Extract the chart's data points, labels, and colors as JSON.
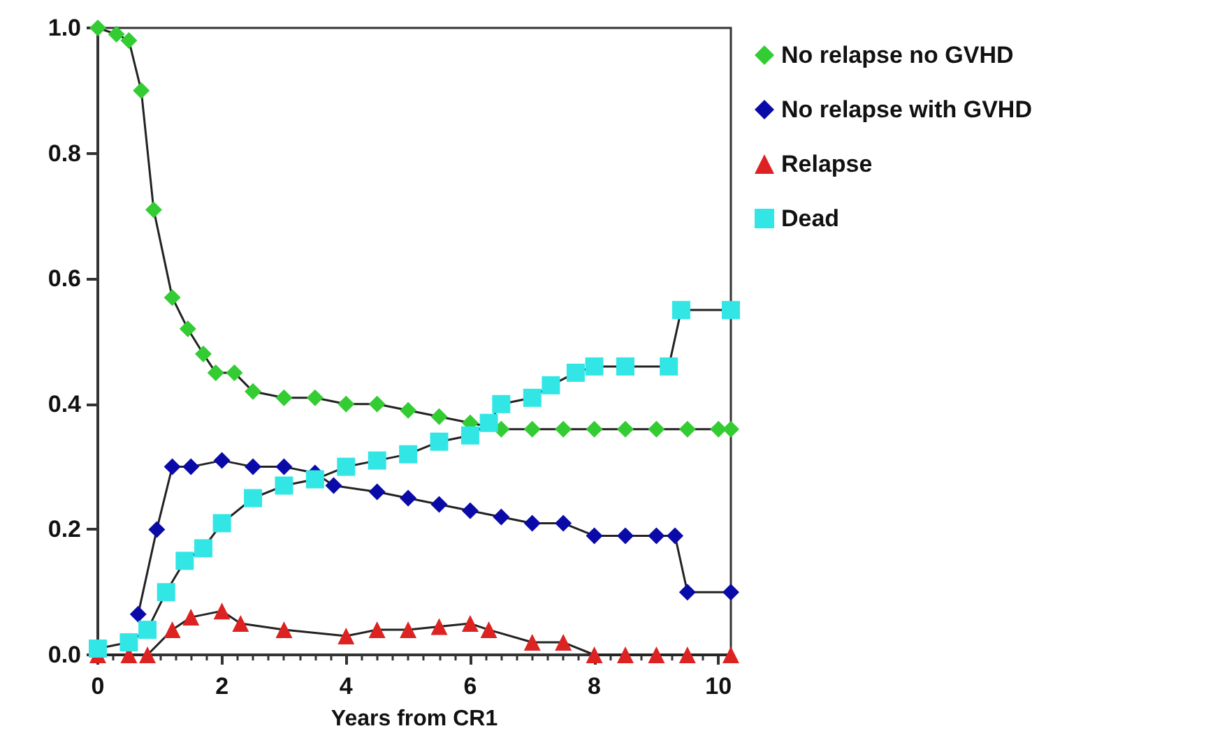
{
  "chart_data": {
    "type": "line",
    "xlabel": "Years from CR1",
    "xlim": [
      0,
      10.2
    ],
    "xticks": [
      0,
      2,
      4,
      6,
      8,
      10
    ],
    "ylim": [
      0,
      1
    ],
    "yticks": [
      {
        "value": 0,
        "label": "0.0"
      },
      {
        "value": 0.2,
        "label": "0.2"
      },
      {
        "value": 0.4,
        "label": "0.4"
      },
      {
        "value": 0.6,
        "label": "0.6"
      },
      {
        "value": 0.8,
        "label": "0.8"
      },
      {
        "value": 1,
        "label": "1.0"
      }
    ],
    "grid": false,
    "legend": "right",
    "line_style": "solid",
    "series": [
      {
        "name": "No relapse no GVHD",
        "color": "#33cc33",
        "marker": "diamond",
        "x": [
          0,
          0.3,
          0.5,
          0.7,
          0.9,
          1.2,
          1.45,
          1.7,
          1.9,
          2.2,
          2.5,
          3,
          3.5,
          4,
          4.5,
          5,
          5.5,
          6,
          6.5,
          7,
          7.5,
          8,
          8.5,
          9,
          9.5,
          10,
          10.2
        ],
        "values": [
          1.0,
          0.99,
          0.98,
          0.9,
          0.71,
          0.57,
          0.52,
          0.48,
          0.45,
          0.45,
          0.42,
          0.41,
          0.41,
          0.4,
          0.4,
          0.39,
          0.38,
          0.37,
          0.36,
          0.36,
          0.36,
          0.36,
          0.36,
          0.36,
          0.36,
          0.36,
          0.36
        ]
      },
      {
        "name": "No relapse with GVHD",
        "color": "#0a0aa8",
        "marker": "diamond",
        "x": [
          0.65,
          0.95,
          1.2,
          1.5,
          2,
          2.5,
          3,
          3.5,
          3.8,
          4.5,
          5,
          5.5,
          6,
          6.5,
          7,
          7.5,
          8,
          8.5,
          9,
          9.3,
          9.5,
          10.2
        ],
        "values": [
          0.065,
          0.2,
          0.3,
          0.3,
          0.31,
          0.3,
          0.3,
          0.29,
          0.27,
          0.26,
          0.25,
          0.24,
          0.23,
          0.22,
          0.21,
          0.21,
          0.19,
          0.19,
          0.19,
          0.19,
          0.1,
          0.1
        ]
      },
      {
        "name": "Relapse",
        "color": "#dd2222",
        "marker": "triangle",
        "x": [
          0,
          0.5,
          0.8,
          1.2,
          1.5,
          2,
          2.3,
          3,
          4,
          4.5,
          5,
          5.5,
          6,
          6.3,
          7,
          7.5,
          8,
          8.5,
          9,
          9.5,
          10.2
        ],
        "values": [
          0,
          0,
          0,
          0.04,
          0.06,
          0.07,
          0.05,
          0.04,
          0.03,
          0.04,
          0.04,
          0.045,
          0.05,
          0.04,
          0.02,
          0.02,
          0,
          0,
          0,
          0,
          0
        ]
      },
      {
        "name": "Dead",
        "color": "#33e6e6",
        "marker": "square",
        "x": [
          0,
          0.5,
          0.8,
          1.1,
          1.4,
          1.7,
          2,
          2.5,
          3,
          3.5,
          4,
          4.5,
          5,
          5.5,
          6,
          6.3,
          6.5,
          7,
          7.3,
          7.7,
          8,
          8.5,
          9.2,
          9.4,
          10.2
        ],
        "values": [
          0.01,
          0.02,
          0.04,
          0.1,
          0.15,
          0.17,
          0.21,
          0.25,
          0.27,
          0.28,
          0.3,
          0.31,
          0.32,
          0.34,
          0.35,
          0.37,
          0.4,
          0.41,
          0.43,
          0.45,
          0.46,
          0.46,
          0.46,
          0.55,
          0.55
        ]
      }
    ]
  }
}
